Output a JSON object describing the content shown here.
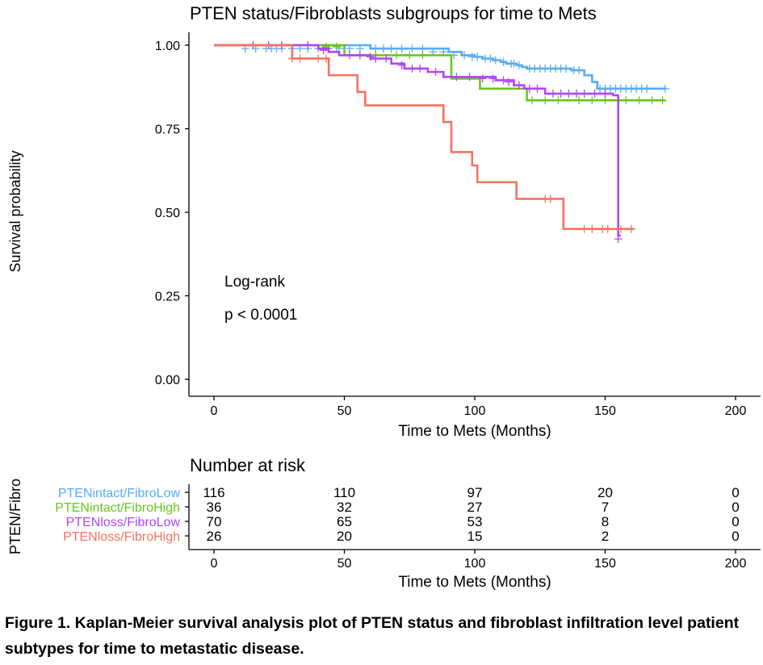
{
  "chart_data": {
    "type": "line",
    "subtype": "kaplan-meier",
    "title": "PTEN status/Fibroblasts subgroups for time to Mets",
    "xlabel": "Time to Mets (Months)",
    "ylabel": "Survival probability",
    "xlim": [
      0,
      200
    ],
    "ylim": [
      0,
      1
    ],
    "x_ticks": [
      "0",
      "50",
      "100",
      "150",
      "200"
    ],
    "y_ticks": [
      "0.00",
      "0.25",
      "0.50",
      "0.75",
      "1.00"
    ],
    "grid": false,
    "annotation": {
      "line1": "Log-rank",
      "line2": "p < 0.0001"
    },
    "series": [
      {
        "name": "PTENintact/FibroLow",
        "color": "#5aabf2",
        "steps": [
          [
            0,
            1.0
          ],
          [
            60,
            0.99
          ],
          [
            90,
            0.98
          ],
          [
            95,
            0.97
          ],
          [
            100,
            0.965
          ],
          [
            103,
            0.96
          ],
          [
            107,
            0.955
          ],
          [
            110,
            0.95
          ],
          [
            112,
            0.945
          ],
          [
            116,
            0.94
          ],
          [
            118,
            0.935
          ],
          [
            120,
            0.93
          ],
          [
            137,
            0.925
          ],
          [
            142,
            0.91
          ],
          [
            145,
            0.89
          ],
          [
            147,
            0.87
          ],
          [
            173,
            0.87
          ]
        ],
        "censors": [
          [
            12,
            0.99
          ],
          [
            16,
            0.99
          ],
          [
            20,
            0.99
          ],
          [
            22,
            0.99
          ],
          [
            24,
            0.99
          ],
          [
            26,
            0.99
          ],
          [
            30,
            0.99
          ],
          [
            33,
            0.99
          ],
          [
            36,
            0.99
          ],
          [
            40,
            0.99
          ],
          [
            44,
            0.99
          ],
          [
            48,
            0.99
          ],
          [
            52,
            0.99
          ],
          [
            56,
            0.99
          ],
          [
            62,
            0.99
          ],
          [
            65,
            0.99
          ],
          [
            68,
            0.99
          ],
          [
            72,
            0.99
          ],
          [
            76,
            0.99
          ],
          [
            80,
            0.99
          ],
          [
            84,
            0.98
          ],
          [
            88,
            0.98
          ],
          [
            92,
            0.97
          ],
          [
            96,
            0.97
          ],
          [
            99,
            0.965
          ],
          [
            101,
            0.965
          ],
          [
            104,
            0.96
          ],
          [
            106,
            0.96
          ],
          [
            108,
            0.955
          ],
          [
            111,
            0.95
          ],
          [
            114,
            0.945
          ],
          [
            115,
            0.945
          ],
          [
            117,
            0.94
          ],
          [
            121,
            0.93
          ],
          [
            123,
            0.93
          ],
          [
            125,
            0.93
          ],
          [
            127,
            0.93
          ],
          [
            129,
            0.93
          ],
          [
            131,
            0.93
          ],
          [
            133,
            0.93
          ],
          [
            135,
            0.93
          ],
          [
            138,
            0.925
          ],
          [
            140,
            0.925
          ],
          [
            148,
            0.87
          ],
          [
            150,
            0.87
          ],
          [
            152,
            0.87
          ],
          [
            154,
            0.87
          ],
          [
            156,
            0.87
          ],
          [
            158,
            0.87
          ],
          [
            160,
            0.87
          ],
          [
            162,
            0.87
          ],
          [
            164,
            0.87
          ],
          [
            166,
            0.87
          ],
          [
            173,
            0.87
          ]
        ]
      },
      {
        "name": "PTENintact/FibroHigh",
        "color": "#69c61d",
        "steps": [
          [
            0,
            1.0
          ],
          [
            50,
            0.97
          ],
          [
            88,
            0.97
          ],
          [
            91,
            0.9
          ],
          [
            101,
            0.9
          ],
          [
            102,
            0.87
          ],
          [
            118,
            0.87
          ],
          [
            120,
            0.835
          ],
          [
            173,
            0.835
          ]
        ],
        "censors": [
          [
            43,
            0.995
          ],
          [
            47,
            0.995
          ],
          [
            56,
            0.97
          ],
          [
            62,
            0.97
          ],
          [
            70,
            0.97
          ],
          [
            75,
            0.97
          ],
          [
            80,
            0.97
          ],
          [
            122,
            0.835
          ],
          [
            127,
            0.835
          ],
          [
            132,
            0.835
          ],
          [
            140,
            0.835
          ],
          [
            145,
            0.835
          ],
          [
            150,
            0.835
          ],
          [
            158,
            0.835
          ],
          [
            163,
            0.835
          ],
          [
            168,
            0.835
          ],
          [
            172,
            0.835
          ]
        ]
      },
      {
        "name": "PTENloss/FibroLow",
        "color": "#b046f0",
        "steps": [
          [
            0,
            1.0
          ],
          [
            40,
            0.99
          ],
          [
            44,
            0.98
          ],
          [
            48,
            0.97
          ],
          [
            60,
            0.96
          ],
          [
            68,
            0.945
          ],
          [
            73,
            0.93
          ],
          [
            82,
            0.92
          ],
          [
            88,
            0.905
          ],
          [
            108,
            0.895
          ],
          [
            115,
            0.88
          ],
          [
            119,
            0.87
          ],
          [
            127,
            0.855
          ],
          [
            152,
            0.855
          ],
          [
            153,
            0.85
          ],
          [
            155,
            0.43
          ],
          [
            156,
            0.43
          ]
        ],
        "censors": [
          [
            15,
            1.0
          ],
          [
            21,
            1.0
          ],
          [
            26,
            1.0
          ],
          [
            36,
            1.0
          ],
          [
            42,
            0.985
          ],
          [
            52,
            0.97
          ],
          [
            56,
            0.97
          ],
          [
            60,
            0.965
          ],
          [
            62,
            0.96
          ],
          [
            66,
            0.96
          ],
          [
            72,
            0.94
          ],
          [
            76,
            0.93
          ],
          [
            79,
            0.93
          ],
          [
            85,
            0.92
          ],
          [
            93,
            0.905
          ],
          [
            98,
            0.905
          ],
          [
            103,
            0.9
          ],
          [
            107,
            0.9
          ],
          [
            111,
            0.895
          ],
          [
            113,
            0.89
          ],
          [
            117,
            0.88
          ],
          [
            121,
            0.87
          ],
          [
            124,
            0.87
          ],
          [
            130,
            0.855
          ],
          [
            133,
            0.855
          ],
          [
            136,
            0.855
          ],
          [
            139,
            0.855
          ],
          [
            142,
            0.855
          ],
          [
            146,
            0.855
          ],
          [
            150,
            0.855
          ],
          [
            155,
            0.42
          ]
        ]
      },
      {
        "name": "PTENloss/FibroHigh",
        "color": "#f2745e",
        "steps": [
          [
            0,
            1.0
          ],
          [
            30,
            0.96
          ],
          [
            44,
            0.91
          ],
          [
            55,
            0.86
          ],
          [
            58,
            0.82
          ],
          [
            86,
            0.82
          ],
          [
            88,
            0.77
          ],
          [
            91,
            0.68
          ],
          [
            99,
            0.64
          ],
          [
            101,
            0.59
          ],
          [
            115,
            0.59
          ],
          [
            116,
            0.54
          ],
          [
            132,
            0.54
          ],
          [
            134,
            0.45
          ],
          [
            161,
            0.45
          ]
        ],
        "censors": [
          [
            30,
            0.96
          ],
          [
            33,
            0.96
          ],
          [
            40,
            0.96
          ],
          [
            43,
            0.96
          ],
          [
            127,
            0.54
          ],
          [
            129,
            0.54
          ],
          [
            142,
            0.45
          ],
          [
            145,
            0.45
          ],
          [
            149,
            0.45
          ],
          [
            151,
            0.45
          ],
          [
            156,
            0.45
          ],
          [
            160,
            0.45
          ]
        ]
      }
    ]
  },
  "risk_table": {
    "title": "Number at risk",
    "strata_label": "PTEN/Fibro",
    "xlabel": "Time to Mets (Months)",
    "times": [
      0,
      50,
      100,
      150,
      200
    ],
    "x_ticks": [
      "0",
      "50",
      "100",
      "150",
      "200"
    ],
    "rows": [
      {
        "name": "PTENintact/FibroLow",
        "color": "#5aabf2",
        "counts": [
          "116",
          "110",
          "97",
          "20",
          "0"
        ]
      },
      {
        "name": "PTENintact/FibroHigh",
        "color": "#69c61d",
        "counts": [
          "36",
          "32",
          "27",
          "7",
          "0"
        ]
      },
      {
        "name": "PTENloss/FibroLow",
        "color": "#b046f0",
        "counts": [
          "70",
          "65",
          "53",
          "8",
          "0"
        ]
      },
      {
        "name": "PTENloss/FibroHigh",
        "color": "#f2745e",
        "counts": [
          "26",
          "20",
          "15",
          "2",
          "0"
        ]
      }
    ]
  },
  "caption": "Figure 1. Kaplan-Meier survival analysis plot of PTEN status and fibroblast infiltration level patient subtypes for time to metastatic disease."
}
